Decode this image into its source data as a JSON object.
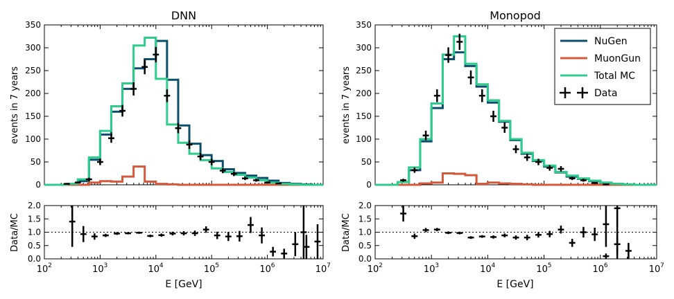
{
  "colors": {
    "nugen": "#0b4f6c",
    "muongun": "#d4583a",
    "total_mc": "#2ecc8c",
    "data": "#000000"
  },
  "legend": {
    "placement": "top-right",
    "panel": "Monopod",
    "entries": [
      "NuGen",
      "MuonGun",
      "Total MC",
      "Data"
    ]
  },
  "chart_data": [
    {
      "type": "histogram",
      "title": "DNN",
      "xlabel": "E [GeV]",
      "xscale": "log",
      "xlim": [
        100,
        10000000
      ],
      "xtick_labels": [
        "10^2",
        "10^3",
        "10^4",
        "10^5",
        "10^6",
        "10^7"
      ],
      "bin_edges_log10": [
        2.0,
        2.2,
        2.4,
        2.6,
        2.8,
        3.0,
        3.2,
        3.4,
        3.6,
        3.8,
        4.0,
        4.2,
        4.4,
        4.6,
        4.8,
        5.0,
        5.2,
        5.4,
        5.6,
        5.8,
        6.0,
        6.2,
        6.4,
        6.6,
        6.8,
        7.0
      ],
      "main_panel": {
        "ylabel": "events in 7 years",
        "ylim": [
          0,
          350
        ],
        "yticks": [
          0,
          50,
          100,
          150,
          200,
          250,
          300,
          350
        ],
        "series": [
          {
            "name": "NuGen",
            "values": [
              0,
              0,
              2,
              8,
              55,
              110,
              160,
              210,
              255,
              275,
              315,
              230,
              130,
              90,
              65,
              52,
              34,
              26,
              20,
              15,
              9,
              4,
              2,
              1,
              0
            ]
          },
          {
            "name": "MuonGun",
            "values": [
              0,
              0,
              0,
              0,
              5,
              8,
              7,
              18,
              40,
              7,
              2,
              1,
              0,
              0,
              0,
              0,
              0,
              0,
              0,
              0,
              0,
              0,
              0,
              0,
              0
            ]
          },
          {
            "name": "Total MC",
            "values": [
              0,
              0,
              2,
              12,
              60,
              118,
              172,
              222,
              305,
              322,
              232,
              132,
              92,
              68,
              54,
              36,
              28,
              22,
              16,
              10,
              5,
              2,
              1,
              0,
              0
            ]
          }
        ],
        "data": {
          "name": "Data",
          "centers_log10": [
            2.4,
            2.6,
            2.8,
            3.0,
            3.2,
            3.4,
            3.6,
            3.8,
            4.0,
            4.2,
            4.4,
            4.6,
            4.8,
            5.0,
            5.2,
            5.4,
            5.6,
            5.8,
            6.0,
            6.2
          ],
          "values": [
            2,
            5,
            12,
            50,
            102,
            162,
            210,
            258,
            285,
            195,
            124,
            88,
            62,
            50,
            31,
            24,
            14,
            10,
            5,
            3
          ],
          "errors": [
            1.4,
            2.2,
            3.5,
            7,
            10,
            12.7,
            14.5,
            16,
            16.9,
            14,
            11.1,
            9.4,
            7.9,
            7.1,
            5.6,
            4.9,
            3.7,
            3.2,
            2.2,
            1.7
          ]
        }
      },
      "ratio_panel": {
        "ylabel": "Data/MC",
        "ylim": [
          0,
          2.0
        ],
        "yticks": [
          0.0,
          0.5,
          1.0,
          1.5,
          2.0
        ],
        "reference_line": 1.0,
        "centers_log10": [
          2.5,
          2.7,
          2.9,
          3.1,
          3.3,
          3.5,
          3.7,
          3.9,
          4.1,
          4.3,
          4.5,
          4.7,
          4.9,
          5.1,
          5.3,
          5.5,
          5.7,
          5.9,
          6.1,
          6.3,
          6.5,
          6.7,
          6.9
        ],
        "values": [
          1.4,
          0.93,
          0.84,
          0.88,
          0.95,
          0.96,
          0.98,
          0.86,
          0.89,
          0.95,
          0.96,
          0.96,
          1.1,
          0.88,
          0.84,
          0.85,
          1.27,
          0.88,
          0.27,
          0.2,
          0.55,
          0.45,
          0.65
        ],
        "errors": [
          0.95,
          0.3,
          0.12,
          0.06,
          0.05,
          0.04,
          0.04,
          0.05,
          0.06,
          0.07,
          0.08,
          0.1,
          0.12,
          0.14,
          0.17,
          0.2,
          0.3,
          0.3,
          0.18,
          0.18,
          0.45,
          0.45,
          0.65
        ],
        "overflow": [
          {
            "center_log10": 6.65,
            "value": 1.0,
            "note": "error bar extends past top of axis"
          }
        ]
      }
    },
    {
      "type": "histogram",
      "title": "Monopod",
      "xlabel": "E [GeV]",
      "xscale": "log",
      "xlim": [
        100,
        10000000
      ],
      "xtick_labels": [
        "10^2",
        "10^3",
        "10^4",
        "10^5",
        "10^6",
        "10^7"
      ],
      "bin_edges_log10": [
        2.0,
        2.2,
        2.4,
        2.6,
        2.8,
        3.0,
        3.2,
        3.4,
        3.6,
        3.8,
        4.0,
        4.2,
        4.4,
        4.6,
        4.8,
        5.0,
        5.2,
        5.4,
        5.6,
        5.8,
        6.0,
        6.2,
        6.4,
        6.6,
        6.8,
        7.0
      ],
      "main_panel": {
        "ylabel": "events in 7 years",
        "ylim": [
          0,
          350
        ],
        "yticks": [
          0,
          50,
          100,
          150,
          200,
          250,
          300,
          350
        ],
        "series": [
          {
            "name": "NuGen",
            "values": [
              0,
              0,
              6,
              32,
              95,
              168,
              275,
              290,
              260,
              215,
              180,
              138,
              98,
              68,
              52,
              40,
              27,
              18,
              13,
              8,
              4,
              2,
              1,
              0,
              0
            ]
          },
          {
            "name": "MuonGun",
            "values": [
              0,
              0,
              0,
              0,
              3,
              5,
              25,
              24,
              21,
              2,
              5,
              3,
              2,
              1,
              0,
              0,
              0,
              0,
              0,
              0,
              0,
              0,
              0,
              0,
              0
            ]
          },
          {
            "name": "Total MC",
            "values": [
              0,
              0,
              6,
              38,
              100,
              178,
              285,
              325,
              265,
              220,
              185,
              140,
              100,
              70,
              54,
              42,
              28,
              20,
              14,
              9,
              5,
              2,
              1,
              0,
              0
            ]
          }
        ],
        "data": {
          "name": "Data",
          "centers_log10": [
            2.5,
            2.7,
            2.9,
            3.1,
            3.3,
            3.5,
            3.7,
            3.9,
            4.1,
            4.3,
            4.5,
            4.7,
            4.9,
            5.1,
            5.3,
            5.5,
            5.7,
            5.9,
            6.1,
            6.3
          ],
          "values": [
            10,
            32,
            108,
            195,
            284,
            313,
            235,
            195,
            150,
            125,
            78,
            60,
            50,
            37,
            35,
            14,
            10,
            4,
            1,
            0
          ],
          "errors": [
            3.2,
            5.7,
            10.4,
            14,
            16.9,
            17.7,
            15.3,
            14,
            12.2,
            11.2,
            8.8,
            7.7,
            7.1,
            6.1,
            5.9,
            3.7,
            3.2,
            2,
            1,
            0.5
          ]
        }
      },
      "ratio_panel": {
        "ylabel": "Data/MC",
        "ylim": [
          0,
          2.0
        ],
        "yticks": [
          0.0,
          0.5,
          1.0,
          1.5,
          2.0
        ],
        "reference_line": 1.0,
        "centers_log10": [
          2.5,
          2.7,
          2.9,
          3.1,
          3.3,
          3.5,
          3.7,
          3.9,
          4.1,
          4.3,
          4.5,
          4.7,
          4.9,
          5.1,
          5.3,
          5.5,
          5.7,
          5.9,
          6.1,
          6.3,
          6.5
        ],
        "values": [
          1.7,
          0.85,
          1.08,
          1.1,
          0.98,
          0.97,
          0.8,
          0.84,
          0.82,
          0.88,
          0.8,
          0.8,
          0.9,
          0.93,
          1.1,
          0.6,
          1.0,
          0.92,
          0.1,
          0.55,
          0.3
        ],
        "errors": [
          0.3,
          0.1,
          0.08,
          0.06,
          0.05,
          0.05,
          0.05,
          0.05,
          0.06,
          0.07,
          0.08,
          0.1,
          0.1,
          0.12,
          0.15,
          0.15,
          0.2,
          0.25,
          0.1,
          0.3,
          0.3
        ],
        "extra_points": [
          {
            "center_log10": 6.1,
            "value": 1.3,
            "error": 0.85,
            "extends_above_axis": false
          },
          {
            "center_log10": 6.3,
            "value": 1.9,
            "error": 1.9,
            "extends_above_axis": true
          }
        ]
      }
    }
  ]
}
